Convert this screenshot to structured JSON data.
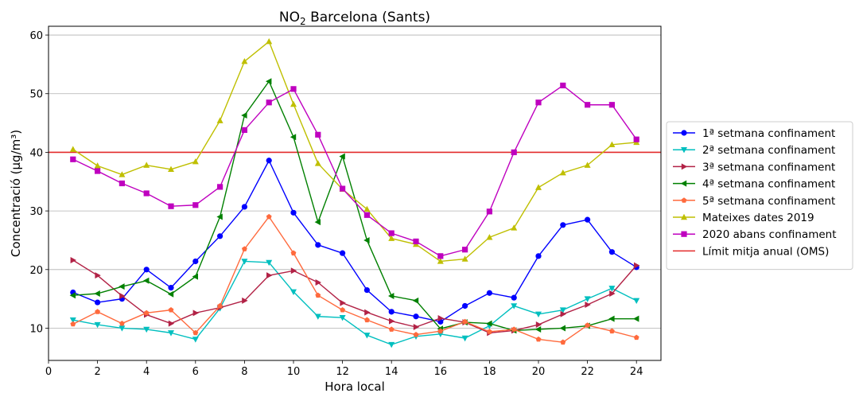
{
  "chart_data": {
    "type": "line",
    "title_main": "NO",
    "title_sub": "2",
    "title_rest": " Barcelona (Sants)",
    "xlabel": "Hora local",
    "ylabel": "Concentració (µg/m³)",
    "xlim": [
      0,
      25
    ],
    "ylim": [
      4.5,
      61.5
    ],
    "xticks": [
      0,
      2,
      4,
      6,
      8,
      10,
      12,
      14,
      16,
      18,
      20,
      22,
      24
    ],
    "yticks": [
      10,
      20,
      30,
      40,
      50,
      60
    ],
    "grid": "horizontal",
    "legend_position": "right",
    "x": [
      1,
      2,
      3,
      4,
      5,
      6,
      7,
      8,
      9,
      10,
      11,
      12,
      13,
      14,
      15,
      16,
      17,
      18,
      19,
      20,
      21,
      22,
      23,
      24
    ],
    "series": [
      {
        "name": "1ª setmana confinament",
        "color": "#0000ff",
        "marker": "circle",
        "values": [
          16.1,
          14.4,
          15.0,
          20.0,
          16.9,
          21.4,
          25.7,
          30.7,
          38.6,
          29.7,
          24.2,
          22.8,
          16.5,
          12.8,
          12.0,
          11.1,
          13.8,
          16.0,
          15.2,
          22.3,
          27.6,
          28.5,
          23.0,
          20.4
        ]
      },
      {
        "name": "2ª setmana confinament",
        "color": "#00bfbf",
        "marker": "triangle-down",
        "values": [
          11.4,
          10.6,
          10.0,
          9.8,
          9.2,
          8.1,
          13.4,
          21.4,
          21.2,
          16.2,
          12.0,
          11.8,
          8.8,
          7.2,
          8.6,
          9.0,
          8.3,
          10.4,
          13.8,
          12.4,
          13.1,
          15.0,
          16.8,
          14.7
        ]
      },
      {
        "name": "3ª setmana confinament",
        "color": "#b22246",
        "marker": "triangle-right",
        "values": [
          21.6,
          19.0,
          15.5,
          12.3,
          10.8,
          12.6,
          13.5,
          14.7,
          19.0,
          19.8,
          17.8,
          14.3,
          12.7,
          11.2,
          10.2,
          11.7,
          11.0,
          9.2,
          9.6,
          10.6,
          12.4,
          14.0,
          15.9,
          20.7
        ]
      },
      {
        "name": "4ª setmana confinament",
        "color": "#008000",
        "marker": "triangle-left",
        "values": [
          15.6,
          15.9,
          17.1,
          18.1,
          15.8,
          18.8,
          29.0,
          46.3,
          52.1,
          42.6,
          28.1,
          39.3,
          25.0,
          15.5,
          14.7,
          9.9,
          11.0,
          10.8,
          9.6,
          9.8,
          10.0,
          10.4,
          11.6,
          11.6
        ]
      },
      {
        "name": "5ª setmana confinament",
        "color": "#ff6a3d",
        "marker": "pentagon",
        "values": [
          10.7,
          12.8,
          10.8,
          12.6,
          13.1,
          9.2,
          13.8,
          23.5,
          29.0,
          22.8,
          15.6,
          13.1,
          11.4,
          9.8,
          8.9,
          9.5,
          11.1,
          9.4,
          9.8,
          8.1,
          7.6,
          10.5,
          9.5,
          8.4
        ]
      },
      {
        "name": "Mateixes dates 2019",
        "color": "#bfbf00",
        "marker": "triangle-up",
        "values": [
          40.5,
          37.7,
          36.2,
          37.8,
          37.1,
          38.4,
          45.4,
          55.5,
          58.9,
          48.2,
          38.1,
          33.7,
          30.3,
          25.3,
          24.3,
          21.4,
          21.8,
          25.5,
          27.1,
          34.0,
          36.5,
          37.8,
          41.3,
          41.7
        ]
      },
      {
        "name": "2020 abans confinament",
        "color": "#bf00bf",
        "marker": "square",
        "values": [
          38.8,
          36.8,
          34.7,
          33.0,
          30.8,
          31.0,
          34.1,
          43.8,
          48.5,
          50.8,
          43.0,
          33.8,
          29.3,
          26.2,
          24.8,
          22.3,
          23.4,
          29.9,
          40.0,
          48.5,
          51.4,
          48.1,
          48.1,
          42.2
        ]
      },
      {
        "name": "Límit mitja anual (OMS)",
        "color": "#e32a2a",
        "marker": "none",
        "constant": 40
      }
    ]
  }
}
